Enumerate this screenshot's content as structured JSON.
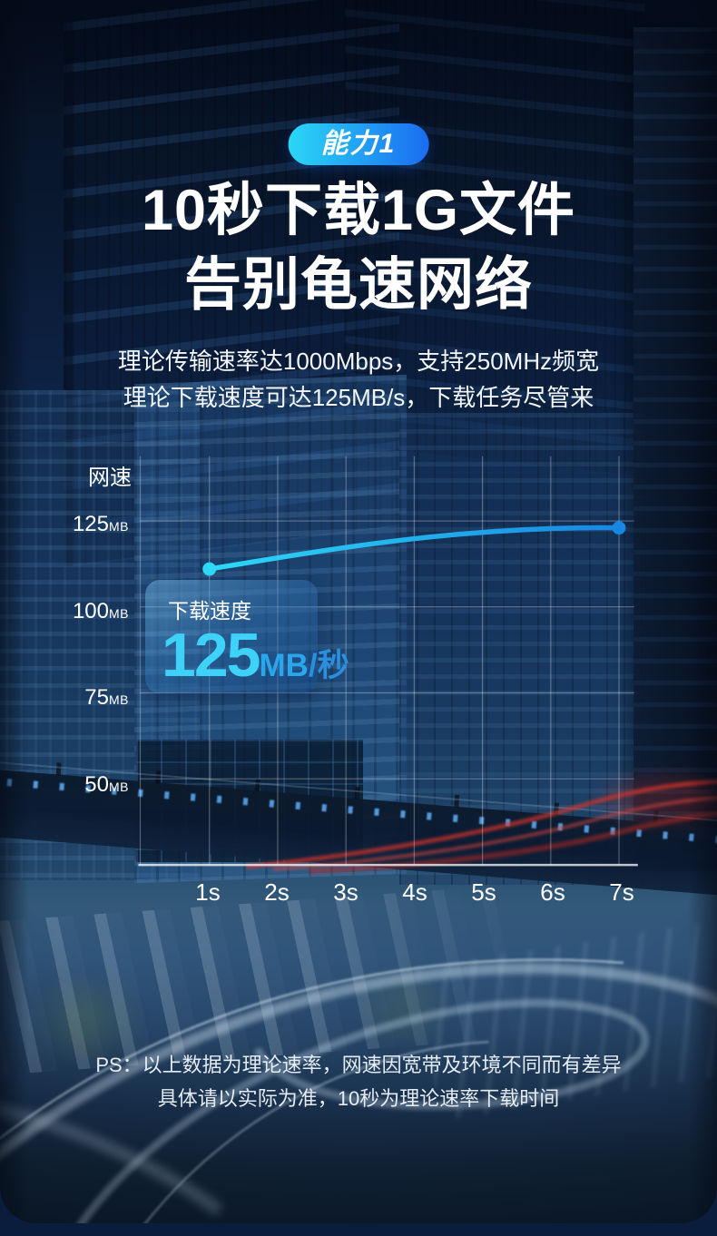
{
  "badge": {
    "label": "能力1"
  },
  "title": {
    "line1": "10秒下载1G文件",
    "line2": "告别龟速网络"
  },
  "subtitle": {
    "line1": "理论传输速率达1000Mbps，支持250MHz频宽",
    "line2": "理论下载速度可达125MB/s，下载任务尽管来"
  },
  "callout": {
    "label": "下载速度",
    "value": "125",
    "unit": "MB",
    "per": "/秒"
  },
  "footnote": {
    "line1": "PS：以上数据为理论速率，网速因宽带及环境不同而有差异",
    "line2": "具体请以实际为准，10秒为理论速率下载时间"
  },
  "chart_data": {
    "type": "line",
    "title": "",
    "xlabel": "",
    "ylabel": "网速",
    "y_ticks": [
      {
        "value": "125",
        "unit": "MB"
      },
      {
        "value": "100",
        "unit": "MB"
      },
      {
        "value": "75",
        "unit": "MB"
      },
      {
        "value": "50",
        "unit": "MB"
      }
    ],
    "x_ticks": [
      "1s",
      "2s",
      "3s",
      "4s",
      "5s",
      "6s",
      "7s"
    ],
    "series": [
      {
        "name": "下载速度",
        "curve": "smooth",
        "points": [
          {
            "x": 1,
            "y": 111
          },
          {
            "x": 7,
            "y": 123
          }
        ]
      }
    ],
    "ylim": [
      25,
      137
    ],
    "xlim": [
      0,
      7.2
    ],
    "grid": true,
    "legend_position": "none",
    "annotation": "下载速度 125MB/秒"
  },
  "colors": {
    "accent_cyan": "#2bd7f6",
    "accent_blue": "#1a6cf0",
    "line_start": "#2ed9f7",
    "line_end": "#1787e2",
    "value_cyan": "#3fd2f8",
    "unit_blue": "#2aa7ec",
    "per_blue": "#2b8fdc",
    "grid_line": "rgba(255,255,255,0.30)",
    "axis_line": "rgba(255,255,255,0.75)",
    "red_trail": "#d8342b"
  }
}
